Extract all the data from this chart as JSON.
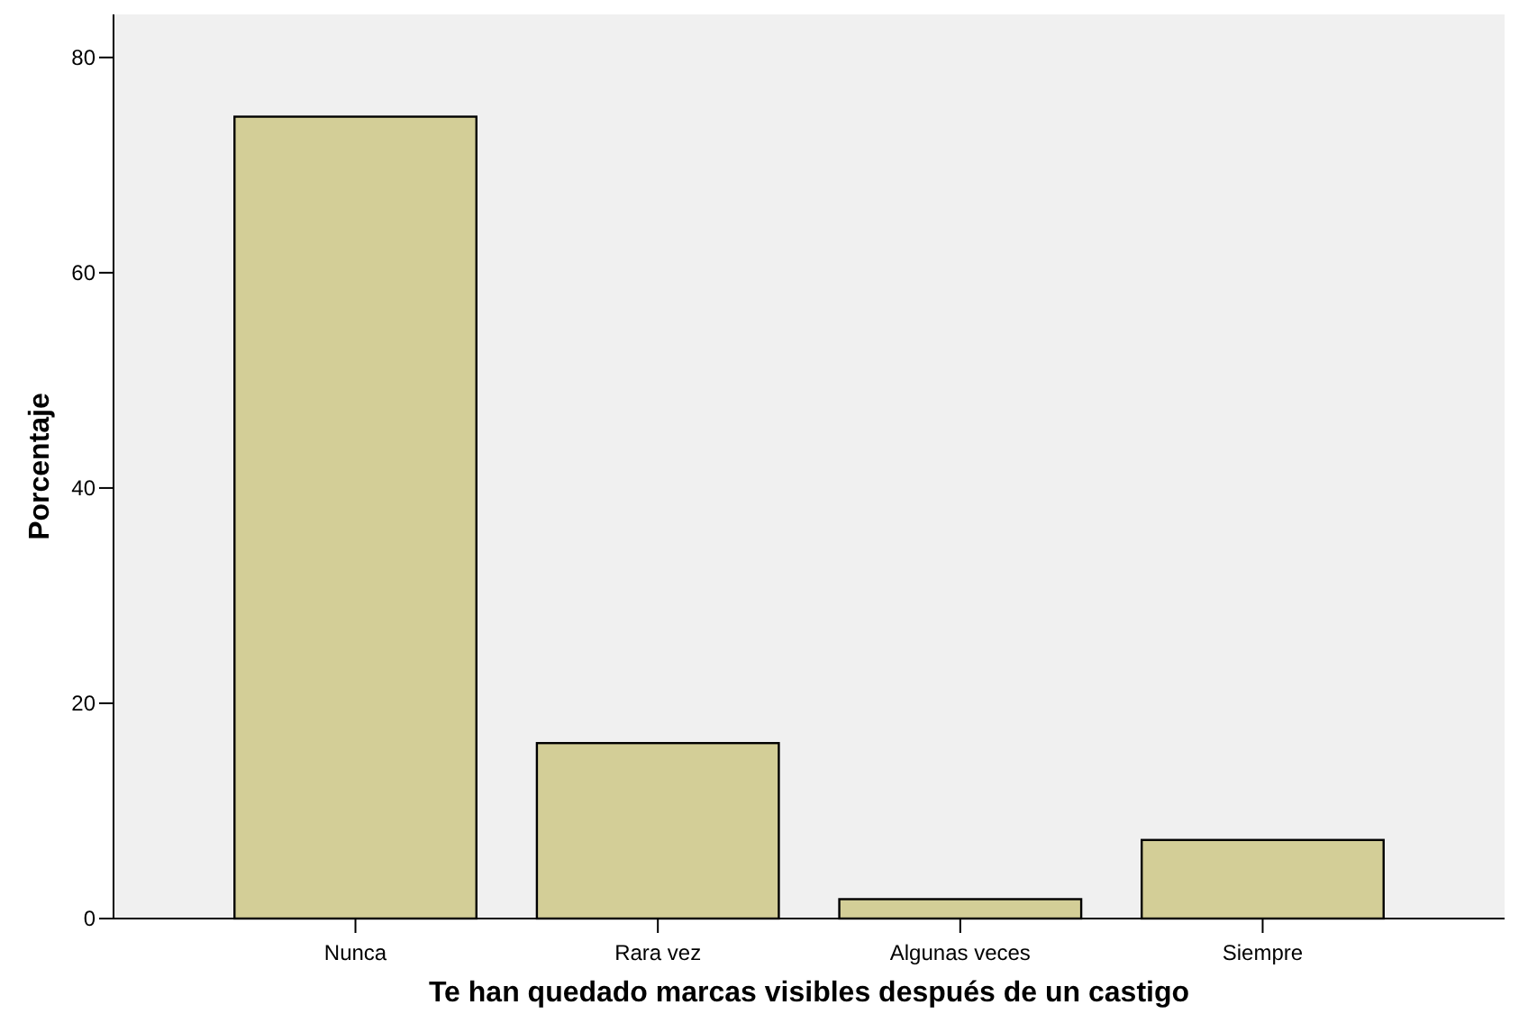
{
  "chart_data": {
    "type": "bar",
    "xlabel": "Te han quedado marcas visibles después de un castigo",
    "ylabel": "Porcentaje",
    "categories": [
      "Nunca",
      "Rara vez",
      "Algunas veces",
      "Siempre"
    ],
    "values": [
      74.5,
      16.3,
      1.8,
      7.3
    ],
    "color": "#d3ce97",
    "ylim": [
      0,
      84
    ],
    "yticks": [
      0,
      20,
      40,
      60,
      80
    ],
    "grid": false
  }
}
